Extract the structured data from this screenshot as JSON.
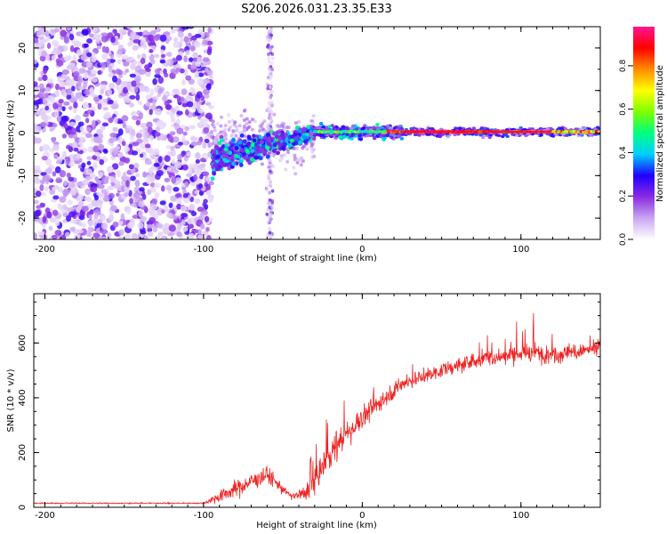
{
  "title": "S206.2026.031.23.35.E33",
  "chart_data": [
    {
      "type": "heatmap",
      "xlabel": "Height of straight line (km)",
      "ylabel": "Frequency (Hz)",
      "xlim": [
        -207,
        150
      ],
      "ylim": [
        -25,
        25
      ],
      "xticks": [
        -200,
        -100,
        0,
        100
      ],
      "xtick_labels": [
        "-200",
        "-100",
        "0",
        "100"
      ],
      "yticks": [
        -20,
        -10,
        0,
        10,
        20
      ],
      "ytick_labels": [
        "-20",
        "-10",
        "0",
        "10",
        "20"
      ],
      "colorbar": {
        "label": "Normalized spectral amplitude",
        "range": [
          0,
          0.98
        ],
        "ticks": [
          0.0,
          0.2,
          0.4,
          0.6,
          0.8
        ],
        "tick_labels": [
          "0.0",
          "0.2",
          "0.4",
          "0.6",
          "0.8"
        ],
        "colors": [
          "#ffffff",
          "#c9a6f2",
          "#8a2be2",
          "#1f00ff",
          "#00cfff",
          "#00ff7f",
          "#7fff00",
          "#ffff00",
          "#ff8c00",
          "#ff0000",
          "#ff1493"
        ]
      },
      "features": {
        "noise_region_x": [
          -207,
          -95
        ],
        "noise_amplitude": 0.25,
        "transition_region_x": [
          -95,
          -30
        ],
        "transition_freq_center": [
          -6,
          0
        ],
        "spike_x": -58,
        "signal_line_freq_hz": 0.3,
        "signal_line_start_x": -30,
        "signal_line_peak_amplitude": 0.95
      }
    },
    {
      "type": "line",
      "color": "#ee2222",
      "xlabel": "Height of straight line (km)",
      "ylabel": "SNR (10 * v/v)",
      "xlim": [
        -207,
        150
      ],
      "ylim": [
        0,
        780
      ],
      "xticks": [
        -200,
        -100,
        0,
        100
      ],
      "xtick_labels": [
        "-200",
        "-100",
        "0",
        "100"
      ],
      "yticks": [
        0,
        200,
        400,
        600
      ],
      "ytick_labels": [
        "0",
        "200",
        "400",
        "600"
      ],
      "trend_x": [
        -207,
        -100,
        -90,
        -60,
        -45,
        -35,
        -20,
        -5,
        10,
        25,
        50,
        75,
        100,
        125,
        150
      ],
      "trend_y": [
        15,
        15,
        40,
        120,
        40,
        50,
        200,
        300,
        380,
        450,
        500,
        540,
        560,
        560,
        580
      ],
      "noise_y": [
        5,
        5,
        60,
        80,
        25,
        80,
        140,
        120,
        80,
        70,
        60,
        70,
        80,
        80,
        60
      ]
    }
  ]
}
